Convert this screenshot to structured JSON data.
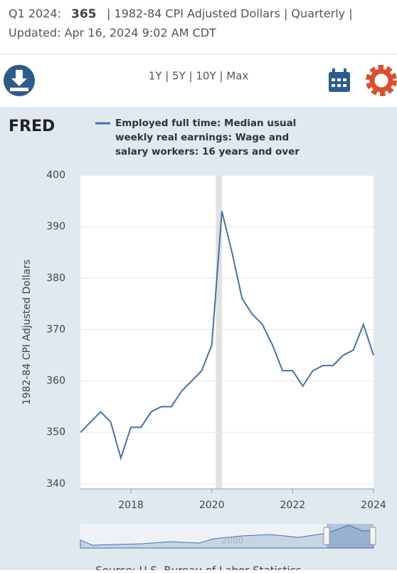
{
  "header": {
    "period": "Q1 2024:",
    "latest": "365",
    "info": "| 1982-84 CPI Adjusted Dollars | Quarterly |",
    "updated": "Updated: Apr 16, 2024 9:02 AM CDT"
  },
  "toolbar": {
    "ranges": "1Y | 5Y | 10Y | Max"
  },
  "logo": "FRED",
  "source": "Source: U.S. Bureau of Labor Statistics",
  "navigator_label": "2000",
  "chart_data": {
    "type": "line",
    "ylabel": "1982-84 CPI Adjusted Dollars",
    "x": [
      2016.75,
      2017,
      2017.25,
      2017.5,
      2017.75,
      2018,
      2018.25,
      2018.5,
      2018.75,
      2019,
      2019.25,
      2019.5,
      2019.75,
      2020,
      2020.25,
      2020.5,
      2020.75,
      2021,
      2021.25,
      2021.5,
      2021.75,
      2022,
      2022.25,
      2022.5,
      2022.75,
      2023,
      2023.25,
      2023.5,
      2023.75,
      2024
    ],
    "series": [
      {
        "name": "Employed full time: Median usual weekly real earnings: Wage and salary workers: 16 years and over",
        "color": "#4572a7",
        "values": [
          350,
          352,
          354,
          352,
          345,
          351,
          351,
          354,
          355,
          355,
          358,
          360,
          362,
          367,
          393,
          385,
          376,
          373,
          371,
          367,
          362,
          362,
          359,
          362,
          363,
          363,
          365,
          366,
          371,
          365
        ]
      }
    ],
    "xlim": [
      2016.75,
      2024
    ],
    "xticks": [
      2018,
      2020,
      2022,
      2024
    ],
    "ylim": [
      339,
      400
    ],
    "yticks": [
      340,
      350,
      360,
      370,
      380,
      390,
      400
    ],
    "grid": true,
    "recession": [
      2020.1,
      2020.25
    ]
  }
}
